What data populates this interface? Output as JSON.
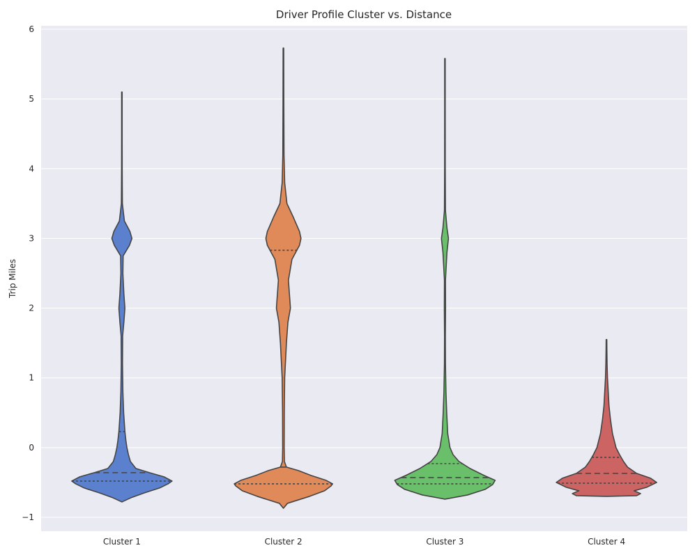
{
  "chart_data": {
    "type": "violin",
    "title": "Driver Profile Cluster vs. Distance",
    "xlabel": "",
    "ylabel": "Trip Miles",
    "ylim": [
      -1.2,
      6.05
    ],
    "yticks": [
      -1,
      0,
      1,
      2,
      3,
      4,
      5,
      6
    ],
    "ytick_labels": [
      "−1",
      "0",
      "1",
      "2",
      "3",
      "4",
      "5",
      "6"
    ],
    "grid": true,
    "categories": [
      "Cluster 1",
      "Cluster 2",
      "Cluster 3",
      "Cluster 4"
    ],
    "series": [
      {
        "category": "Cluster 1",
        "color": "#5a80ce",
        "min": -0.78,
        "max": 5.1,
        "quartiles": {
          "q1": -0.48,
          "median": -0.36,
          "q3": 0.23
        },
        "density": [
          [
            -0.78,
            0.0
          ],
          [
            -0.72,
            0.18
          ],
          [
            -0.65,
            0.45
          ],
          [
            -0.58,
            0.75
          ],
          [
            -0.52,
            0.92
          ],
          [
            -0.48,
            1.0
          ],
          [
            -0.42,
            0.84
          ],
          [
            -0.36,
            0.55
          ],
          [
            -0.3,
            0.28
          ],
          [
            -0.2,
            0.17
          ],
          [
            -0.1,
            0.13
          ],
          [
            0.0,
            0.1
          ],
          [
            0.1,
            0.08
          ],
          [
            0.23,
            0.06
          ],
          [
            0.5,
            0.035
          ],
          [
            0.8,
            0.02
          ],
          [
            1.2,
            0.012
          ],
          [
            1.6,
            0.015
          ],
          [
            1.8,
            0.04
          ],
          [
            2.0,
            0.06
          ],
          [
            2.2,
            0.04
          ],
          [
            2.5,
            0.02
          ],
          [
            2.75,
            0.025
          ],
          [
            2.9,
            0.15
          ],
          [
            3.0,
            0.2
          ],
          [
            3.1,
            0.16
          ],
          [
            3.25,
            0.05
          ],
          [
            3.5,
            0.01
          ],
          [
            4.0,
            0.006
          ],
          [
            4.5,
            0.005
          ],
          [
            5.1,
            0.005
          ]
        ]
      },
      {
        "category": "Cluster 2",
        "color": "#e08a5a",
        "min": -0.87,
        "max": 5.73,
        "quartiles": {
          "q1": -0.52,
          "median": -0.28,
          "q3": 2.83
        },
        "density": [
          [
            -0.87,
            0.0
          ],
          [
            -0.8,
            0.08
          ],
          [
            -0.7,
            0.52
          ],
          [
            -0.62,
            0.82
          ],
          [
            -0.55,
            0.95
          ],
          [
            -0.52,
            0.98
          ],
          [
            -0.47,
            0.85
          ],
          [
            -0.4,
            0.55
          ],
          [
            -0.33,
            0.3
          ],
          [
            -0.28,
            0.06
          ],
          [
            -0.2,
            0.02
          ],
          [
            0.0,
            0.015
          ],
          [
            0.5,
            0.017
          ],
          [
            1.0,
            0.025
          ],
          [
            1.5,
            0.06
          ],
          [
            1.8,
            0.09
          ],
          [
            2.0,
            0.14
          ],
          [
            2.2,
            0.12
          ],
          [
            2.4,
            0.1
          ],
          [
            2.7,
            0.17
          ],
          [
            2.9,
            0.32
          ],
          [
            3.0,
            0.35
          ],
          [
            3.1,
            0.32
          ],
          [
            3.3,
            0.2
          ],
          [
            3.5,
            0.07
          ],
          [
            3.8,
            0.025
          ],
          [
            4.2,
            0.012
          ],
          [
            5.0,
            0.008
          ],
          [
            5.73,
            0.006
          ]
        ]
      },
      {
        "category": "Cluster 3",
        "color": "#6ac06a",
        "min": -0.74,
        "max": 5.58,
        "quartiles": {
          "q1": -0.52,
          "median": -0.43,
          "q3": -0.23
        },
        "density": [
          [
            -0.74,
            0.0
          ],
          [
            -0.68,
            0.45
          ],
          [
            -0.6,
            0.8
          ],
          [
            -0.53,
            0.95
          ],
          [
            -0.47,
            1.0
          ],
          [
            -0.4,
            0.78
          ],
          [
            -0.3,
            0.5
          ],
          [
            -0.2,
            0.28
          ],
          [
            -0.1,
            0.16
          ],
          [
            0.0,
            0.1
          ],
          [
            0.2,
            0.055
          ],
          [
            0.5,
            0.035
          ],
          [
            0.8,
            0.02
          ],
          [
            1.2,
            0.01
          ],
          [
            1.6,
            0.008
          ],
          [
            2.0,
            0.012
          ],
          [
            2.4,
            0.01
          ],
          [
            2.8,
            0.04
          ],
          [
            3.0,
            0.07
          ],
          [
            3.15,
            0.04
          ],
          [
            3.4,
            0.01
          ],
          [
            4.0,
            0.006
          ],
          [
            5.0,
            0.005
          ],
          [
            5.58,
            0.005
          ]
        ]
      },
      {
        "category": "Cluster 4",
        "color": "#cd6464",
        "min": -0.7,
        "max": 1.55,
        "quartiles": {
          "q1": -0.51,
          "median": -0.37,
          "q3": -0.14
        },
        "density": [
          [
            -0.7,
            0.0
          ],
          [
            -0.69,
            0.6
          ],
          [
            -0.66,
            0.68
          ],
          [
            -0.62,
            0.55
          ],
          [
            -0.57,
            0.8
          ],
          [
            -0.5,
            1.0
          ],
          [
            -0.44,
            0.88
          ],
          [
            -0.37,
            0.6
          ],
          [
            -0.28,
            0.42
          ],
          [
            -0.2,
            0.34
          ],
          [
            -0.1,
            0.26
          ],
          [
            0.0,
            0.19
          ],
          [
            0.2,
            0.12
          ],
          [
            0.4,
            0.08
          ],
          [
            0.6,
            0.05
          ],
          [
            0.8,
            0.035
          ],
          [
            1.0,
            0.02
          ],
          [
            1.2,
            0.012
          ],
          [
            1.4,
            0.008
          ],
          [
            1.55,
            0.006
          ]
        ]
      }
    ]
  }
}
